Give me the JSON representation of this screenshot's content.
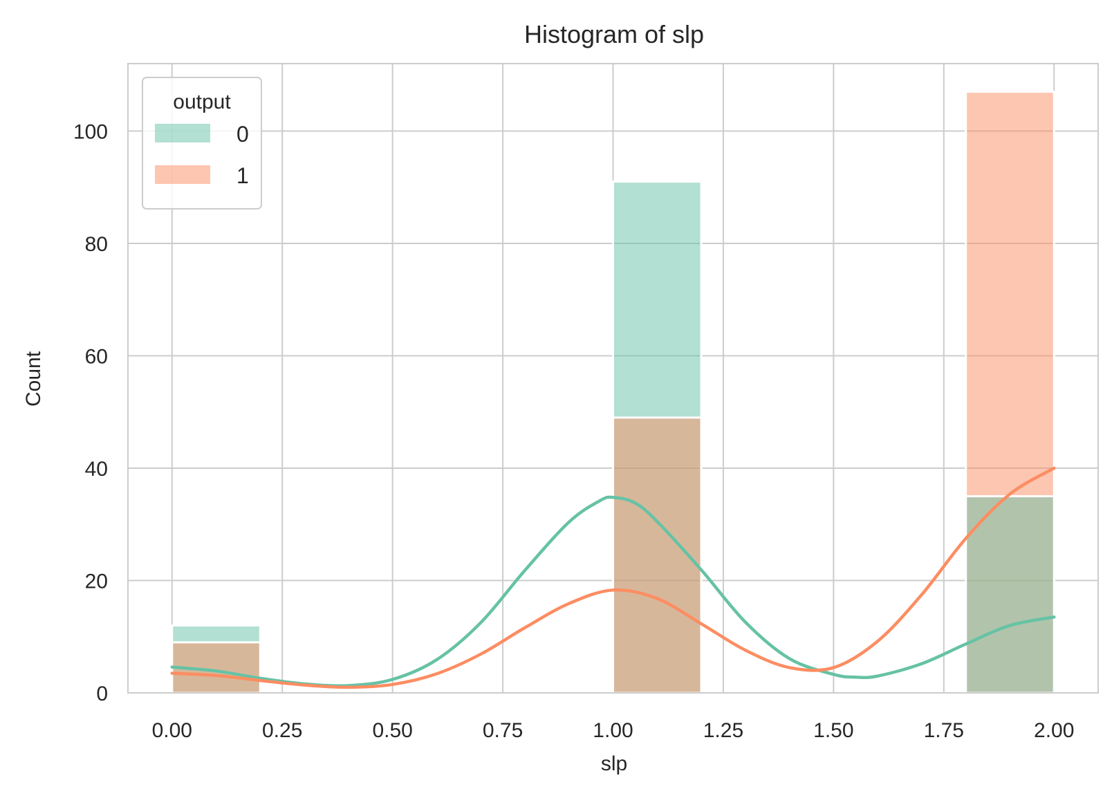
{
  "chart_data": {
    "type": "bar",
    "subtype": "histogram-with-kde",
    "title": "Histogram of slp",
    "xlabel": "slp",
    "ylabel": "Count",
    "xlim": [
      -0.1,
      2.1
    ],
    "ylim": [
      0,
      112
    ],
    "x_ticks": [
      "0.00",
      "0.25",
      "0.50",
      "0.75",
      "1.00",
      "1.25",
      "1.50",
      "1.75",
      "2.00"
    ],
    "x_tick_values": [
      0,
      0.25,
      0.5,
      0.75,
      1.0,
      1.25,
      1.5,
      1.75,
      2.0
    ],
    "y_ticks": [
      "0",
      "20",
      "40",
      "60",
      "80",
      "100"
    ],
    "y_tick_values": [
      0,
      20,
      40,
      60,
      80,
      100
    ],
    "grid": true,
    "legend": {
      "title": "output",
      "placement": "top-left",
      "entries": [
        "0",
        "1"
      ]
    },
    "bins": [
      {
        "x0": 0.0,
        "x1": 0.2
      },
      {
        "x0": 1.0,
        "x1": 1.2
      },
      {
        "x0": 1.8,
        "x1": 2.0
      }
    ],
    "series": [
      {
        "name": "0",
        "color": "#66c2a5",
        "counts": [
          12,
          91,
          35
        ],
        "kde": [
          [
            0.0,
            4.6
          ],
          [
            0.1,
            3.9
          ],
          [
            0.2,
            2.6
          ],
          [
            0.3,
            1.6
          ],
          [
            0.4,
            1.3
          ],
          [
            0.5,
            2.4
          ],
          [
            0.6,
            5.9
          ],
          [
            0.7,
            12.5
          ],
          [
            0.8,
            21.8
          ],
          [
            0.9,
            30.4
          ],
          [
            0.97,
            34.2
          ],
          [
            1.0,
            34.8
          ],
          [
            1.05,
            33.8
          ],
          [
            1.1,
            30.5
          ],
          [
            1.2,
            21.9
          ],
          [
            1.3,
            12.6
          ],
          [
            1.4,
            6.1
          ],
          [
            1.5,
            3.3
          ],
          [
            1.55,
            2.8
          ],
          [
            1.6,
            3.0
          ],
          [
            1.7,
            5.2
          ],
          [
            1.8,
            8.7
          ],
          [
            1.9,
            12.0
          ],
          [
            2.0,
            13.5
          ]
        ]
      },
      {
        "name": "1",
        "color": "#fc8d62",
        "counts": [
          9,
          49,
          107
        ],
        "kde": [
          [
            0.0,
            3.5
          ],
          [
            0.1,
            3.1
          ],
          [
            0.2,
            2.2
          ],
          [
            0.3,
            1.4
          ],
          [
            0.4,
            1.0
          ],
          [
            0.5,
            1.5
          ],
          [
            0.6,
            3.4
          ],
          [
            0.7,
            6.9
          ],
          [
            0.8,
            11.6
          ],
          [
            0.9,
            15.9
          ],
          [
            1.0,
            18.3
          ],
          [
            1.1,
            16.8
          ],
          [
            1.2,
            12.3
          ],
          [
            1.3,
            7.6
          ],
          [
            1.4,
            4.5
          ],
          [
            1.5,
            4.5
          ],
          [
            1.6,
            9.2
          ],
          [
            1.7,
            17.5
          ],
          [
            1.8,
            27.5
          ],
          [
            1.9,
            35.4
          ],
          [
            2.0,
            40.0
          ]
        ]
      }
    ]
  }
}
